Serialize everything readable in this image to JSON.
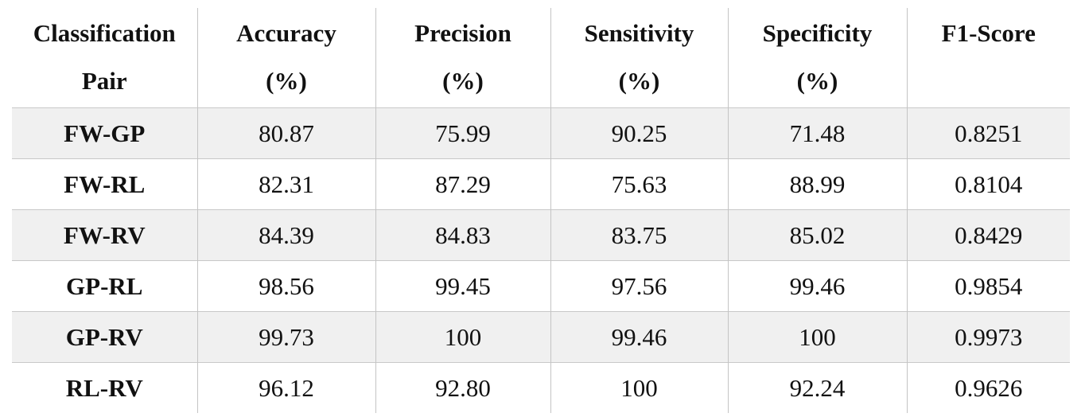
{
  "table": {
    "header": [
      [
        "Classification",
        "Pair"
      ],
      [
        "Accuracy",
        "(%)"
      ],
      [
        "Precision",
        "(%)"
      ],
      [
        "Sensitivity",
        "(%)"
      ],
      [
        "Specificity",
        "(%)"
      ],
      [
        "F1-Score"
      ]
    ],
    "rows": [
      [
        "FW-GP",
        "80.87",
        "75.99",
        "90.25",
        "71.48",
        "0.8251"
      ],
      [
        "FW-RL",
        "82.31",
        "87.29",
        "75.63",
        "88.99",
        "0.8104"
      ],
      [
        "FW-RV",
        "84.39",
        "84.83",
        "83.75",
        "85.02",
        "0.8429"
      ],
      [
        "GP-RL",
        "98.56",
        "99.45",
        "97.56",
        "99.46",
        "0.9854"
      ],
      [
        "GP-RV",
        "99.73",
        "100",
        "99.46",
        "100",
        "0.9973"
      ],
      [
        "RL-RV",
        "96.12",
        "92.80",
        "100",
        "92.24",
        "0.9626"
      ]
    ]
  }
}
